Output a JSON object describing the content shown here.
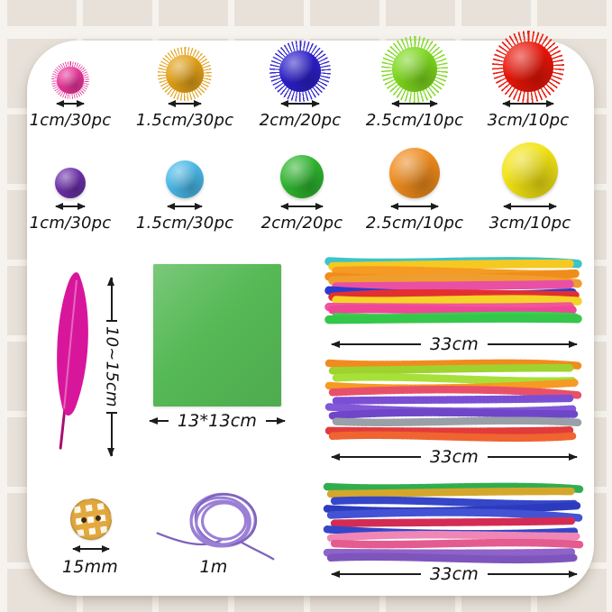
{
  "colors": {
    "background": "#e7e1da",
    "grid_line": "#f6f3ef",
    "card": "#ffffff",
    "arrow": "#1c1c1c",
    "text": "#111111"
  },
  "poms": {
    "glitter": [
      {
        "color_name": "pink",
        "hex": "#e8359a",
        "label": "1cm/30pc"
      },
      {
        "color_name": "gold",
        "hex": "#e2a018",
        "label": "1.5cm/30pc"
      },
      {
        "color_name": "blue",
        "hex": "#2c1fc9",
        "label": "2cm/20pc"
      },
      {
        "color_name": "green",
        "hex": "#7ed81f",
        "label": "2.5cm/10pc"
      },
      {
        "color_name": "red",
        "hex": "#e81508",
        "label": "3cm/10pc"
      }
    ],
    "plain": [
      {
        "color_name": "purple",
        "hex": "#6b2fa8",
        "label": "1cm/30pc"
      },
      {
        "color_name": "light-blue",
        "hex": "#49b8e8",
        "label": "1.5cm/30pc"
      },
      {
        "color_name": "green",
        "hex": "#2eb52e",
        "label": "2cm/20pc"
      },
      {
        "color_name": "orange",
        "hex": "#ef8b1c",
        "label": "2.5cm/10pc"
      },
      {
        "color_name": "yellow",
        "hex": "#f2e313",
        "label": "3cm/10pc"
      }
    ]
  },
  "feather": {
    "length_label": "10~15cm",
    "hex": "#d8169c"
  },
  "paper": {
    "size_label": "13*13cm",
    "hex": "#55b955"
  },
  "bundles": [
    {
      "name": "pipe-cleaners-plain",
      "length_label": "33cm",
      "texture": "plain",
      "colors": [
        "#3bc4c9",
        "#f5c922",
        "#f59a23",
        "#f08c1b",
        "#ef9d2e",
        "#e94fa5",
        "#2a3bd0",
        "#e23030",
        "#f5d327",
        "#f0549e",
        "#ee4796",
        "#3ecf53",
        "#35c74b"
      ]
    },
    {
      "name": "pipe-cleaners-striped",
      "length_label": "33cm",
      "texture": "striped",
      "colors": [
        "#f08c1f",
        "#9ed32f",
        "#a8e03a",
        "#f59a23",
        "#e8506a",
        "#7a4fd4",
        "#8257d8",
        "#6f46c8",
        "#99a0a8",
        "#e23b3b",
        "#ef6430"
      ]
    },
    {
      "name": "pipe-cleaners-glitter",
      "length_label": "33cm",
      "texture": "glitter",
      "colors": [
        "#2fae4e",
        "#d4a72c",
        "#3546c8",
        "#2c3bbe",
        "#4353d4",
        "#d42b55",
        "#3546c8",
        "#ef86b5",
        "#e45b8f",
        "#8f63c9",
        "#7e55bd"
      ]
    }
  ],
  "button": {
    "size_label": "15mm",
    "hex": "#e2a93f"
  },
  "cord": {
    "length_label": "1m",
    "hex": "#9b7fd6"
  }
}
